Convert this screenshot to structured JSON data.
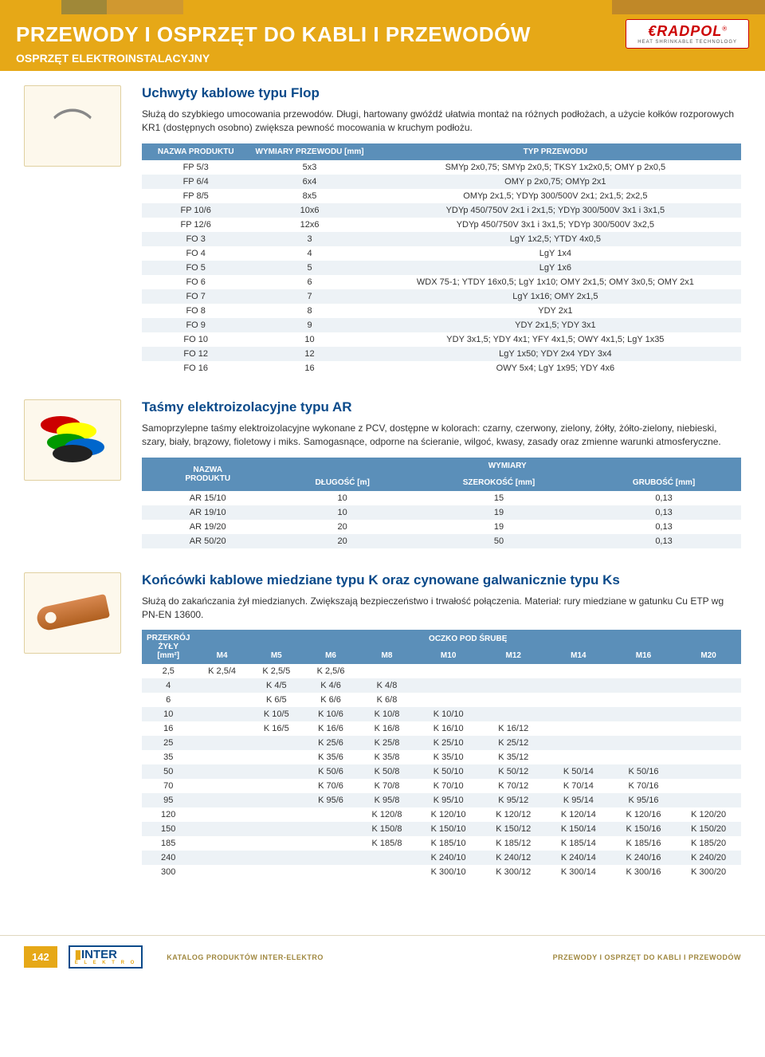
{
  "colors": {
    "accent": "#e6a817",
    "header_text": "#ffffff",
    "table_header_bg": "#5b8fb9",
    "section_title": "#0a4a8a",
    "brand": "#cc0000",
    "stripe_colors": [
      "#e6a817",
      "#a08838",
      "#d09830",
      "#e6a817",
      "#c08828"
    ],
    "stripe_widths": [
      "8%",
      "6%",
      "10%",
      "56%",
      "20%"
    ]
  },
  "header": {
    "title": "PRZEWODY I OSPRZĘT DO KABLI I PRZEWODÓW",
    "subtitle": "OSPRZĘT ELEKTROINSTALACYJNY",
    "brand_name": "RADPOL",
    "brand_prefix": "€",
    "brand_tagline": "HEAT SHRINKABLE TECHNOLOGY"
  },
  "section1": {
    "title": "Uchwyty kablowe typu Flop",
    "desc": "Służą do szybkiego umocowania przewodów. Długi, hartowany gwóźdź ułatwia montaż na różnych podłożach, a użycie kołków rozporowych KR1 (dostępnych osobno) zwiększa pewność mocowania w kruchym podłożu.",
    "columns": [
      "NAZWA PRODUKTU",
      "WYMIARY PRZEWODU [mm]",
      "TYP PRZEWODU"
    ],
    "rows": [
      [
        "FP 5/3",
        "5x3",
        "SMYp 2x0,75; SMYp 2x0,5; TKSY 1x2x0,5; OMY p 2x0,5"
      ],
      [
        "FP 6/4",
        "6x4",
        "OMY p 2x0,75; OMYp 2x1"
      ],
      [
        "FP 8/5",
        "8x5",
        "OMYp 2x1,5; YDYp 300/500V 2x1; 2x1,5; 2x2,5"
      ],
      [
        "FP 10/6",
        "10x6",
        "YDYp 450/750V 2x1 i 2x1,5; YDYp 300/500V 3x1 i 3x1,5"
      ],
      [
        "FP 12/6",
        "12x6",
        "YDYp 450/750V 3x1 i 3x1,5; YDYp 300/500V 3x2,5"
      ],
      [
        "FO 3",
        "3",
        "LgY 1x2,5; YTDY 4x0,5"
      ],
      [
        "FO 4",
        "4",
        "LgY 1x4"
      ],
      [
        "FO 5",
        "5",
        "LgY 1x6"
      ],
      [
        "FO 6",
        "6",
        "WDX 75-1; YTDY 16x0,5; LgY 1x10; OMY 2x1,5; OMY 3x0,5; OMY 2x1"
      ],
      [
        "FO 7",
        "7",
        "LgY 1x16; OMY 2x1,5"
      ],
      [
        "FO 8",
        "8",
        "YDY 2x1"
      ],
      [
        "FO 9",
        "9",
        "YDY 2x1,5; YDY 3x1"
      ],
      [
        "FO 10",
        "10",
        "YDY 3x1,5; YDY 4x1; YFY 4x1,5; OWY 4x1,5; LgY 1x35"
      ],
      [
        "FO 12",
        "12",
        "LgY 1x50; YDY 2x4 YDY 3x4"
      ],
      [
        "FO 16",
        "16",
        "OWY 5x4; LgY 1x95; YDY 4x6"
      ]
    ]
  },
  "section2": {
    "title": "Taśmy elektroizolacyjne typu AR",
    "desc": "Samoprzylepne taśmy elektroizolacyjne wykonane z PCV, dostępne w kolorach: czarny, czerwony, zielony, żółty, żółto-zielony, niebieski, szary, biały, brązowy, fioletowy i miks. Samogasnące, odporne na ścieranie, wilgoć, kwasy, zasady oraz zmienne warunki atmosferyczne.",
    "header_top": [
      "NAZWA",
      "WYMIARY"
    ],
    "header_bottom": [
      "PRODUKTU",
      "DŁUGOŚĆ [m]",
      "SZEROKOŚĆ [mm]",
      "GRUBOŚĆ [mm]"
    ],
    "rows": [
      [
        "AR 15/10",
        "10",
        "15",
        "0,13"
      ],
      [
        "AR 19/10",
        "10",
        "19",
        "0,13"
      ],
      [
        "AR 19/20",
        "20",
        "19",
        "0,13"
      ],
      [
        "AR 50/20",
        "20",
        "50",
        "0,13"
      ]
    ]
  },
  "section3": {
    "title": "Końcówki kablowe miedziane typu K oraz cynowane galwanicznie typu Ks",
    "desc": "Służą do zakańczania żył miedzianych. Zwiększają bezpieczeństwo i trwałość połączenia. Materiał: rury miedziane w gatunku Cu ETP wg PN-EN 13600.",
    "header_top_left": "PRZEKRÓJ\nŻYŁY\n[mm²]",
    "header_top_right": "OCZKO POD ŚRUBĘ",
    "columns": [
      "M4",
      "M5",
      "M6",
      "M8",
      "M10",
      "M12",
      "M14",
      "M16",
      "M20"
    ],
    "rows": [
      [
        "2,5",
        "K 2,5/4",
        "K 2,5/5",
        "K 2,5/6",
        "",
        "",
        "",
        "",
        "",
        ""
      ],
      [
        "4",
        "",
        "K 4/5",
        "K 4/6",
        "K 4/8",
        "",
        "",
        "",
        "",
        ""
      ],
      [
        "6",
        "",
        "K 6/5",
        "K 6/6",
        "K 6/8",
        "",
        "",
        "",
        "",
        ""
      ],
      [
        "10",
        "",
        "K 10/5",
        "K 10/6",
        "K 10/8",
        "K 10/10",
        "",
        "",
        "",
        ""
      ],
      [
        "16",
        "",
        "K 16/5",
        "K 16/6",
        "K 16/8",
        "K 16/10",
        "K 16/12",
        "",
        "",
        ""
      ],
      [
        "25",
        "",
        "",
        "K 25/6",
        "K 25/8",
        "K 25/10",
        "K 25/12",
        "",
        "",
        ""
      ],
      [
        "35",
        "",
        "",
        "K 35/6",
        "K 35/8",
        "K 35/10",
        "K 35/12",
        "",
        "",
        ""
      ],
      [
        "50",
        "",
        "",
        "K 50/6",
        "K 50/8",
        "K 50/10",
        "K 50/12",
        "K 50/14",
        "K 50/16",
        ""
      ],
      [
        "70",
        "",
        "",
        "K 70/6",
        "K 70/8",
        "K 70/10",
        "K 70/12",
        "K 70/14",
        "K 70/16",
        ""
      ],
      [
        "95",
        "",
        "",
        "K 95/6",
        "K 95/8",
        "K 95/10",
        "K 95/12",
        "K 95/14",
        "K 95/16",
        ""
      ],
      [
        "120",
        "",
        "",
        "",
        "K 120/8",
        "K 120/10",
        "K 120/12",
        "K 120/14",
        "K 120/16",
        "K 120/20"
      ],
      [
        "150",
        "",
        "",
        "",
        "K 150/8",
        "K 150/10",
        "K 150/12",
        "K 150/14",
        "K 150/16",
        "K 150/20"
      ],
      [
        "185",
        "",
        "",
        "",
        "K 185/8",
        "K 185/10",
        "K 185/12",
        "K 185/14",
        "K 185/16",
        "K 185/20"
      ],
      [
        "240",
        "",
        "",
        "",
        "",
        "K 240/10",
        "K 240/12",
        "K 240/14",
        "K 240/16",
        "K 240/20"
      ],
      [
        "300",
        "",
        "",
        "",
        "",
        "K 300/10",
        "K 300/12",
        "K 300/14",
        "K 300/16",
        "K 300/20"
      ]
    ]
  },
  "footer": {
    "page": "142",
    "logo_top": "INTER",
    "logo_sub": "E L E K T R O",
    "left_text": "KATALOG PRODUKTÓW INTER-ELEKTRO",
    "right_text": "PRZEWODY I OSPRZĘT DO KABLI I PRZEWODÓW"
  }
}
